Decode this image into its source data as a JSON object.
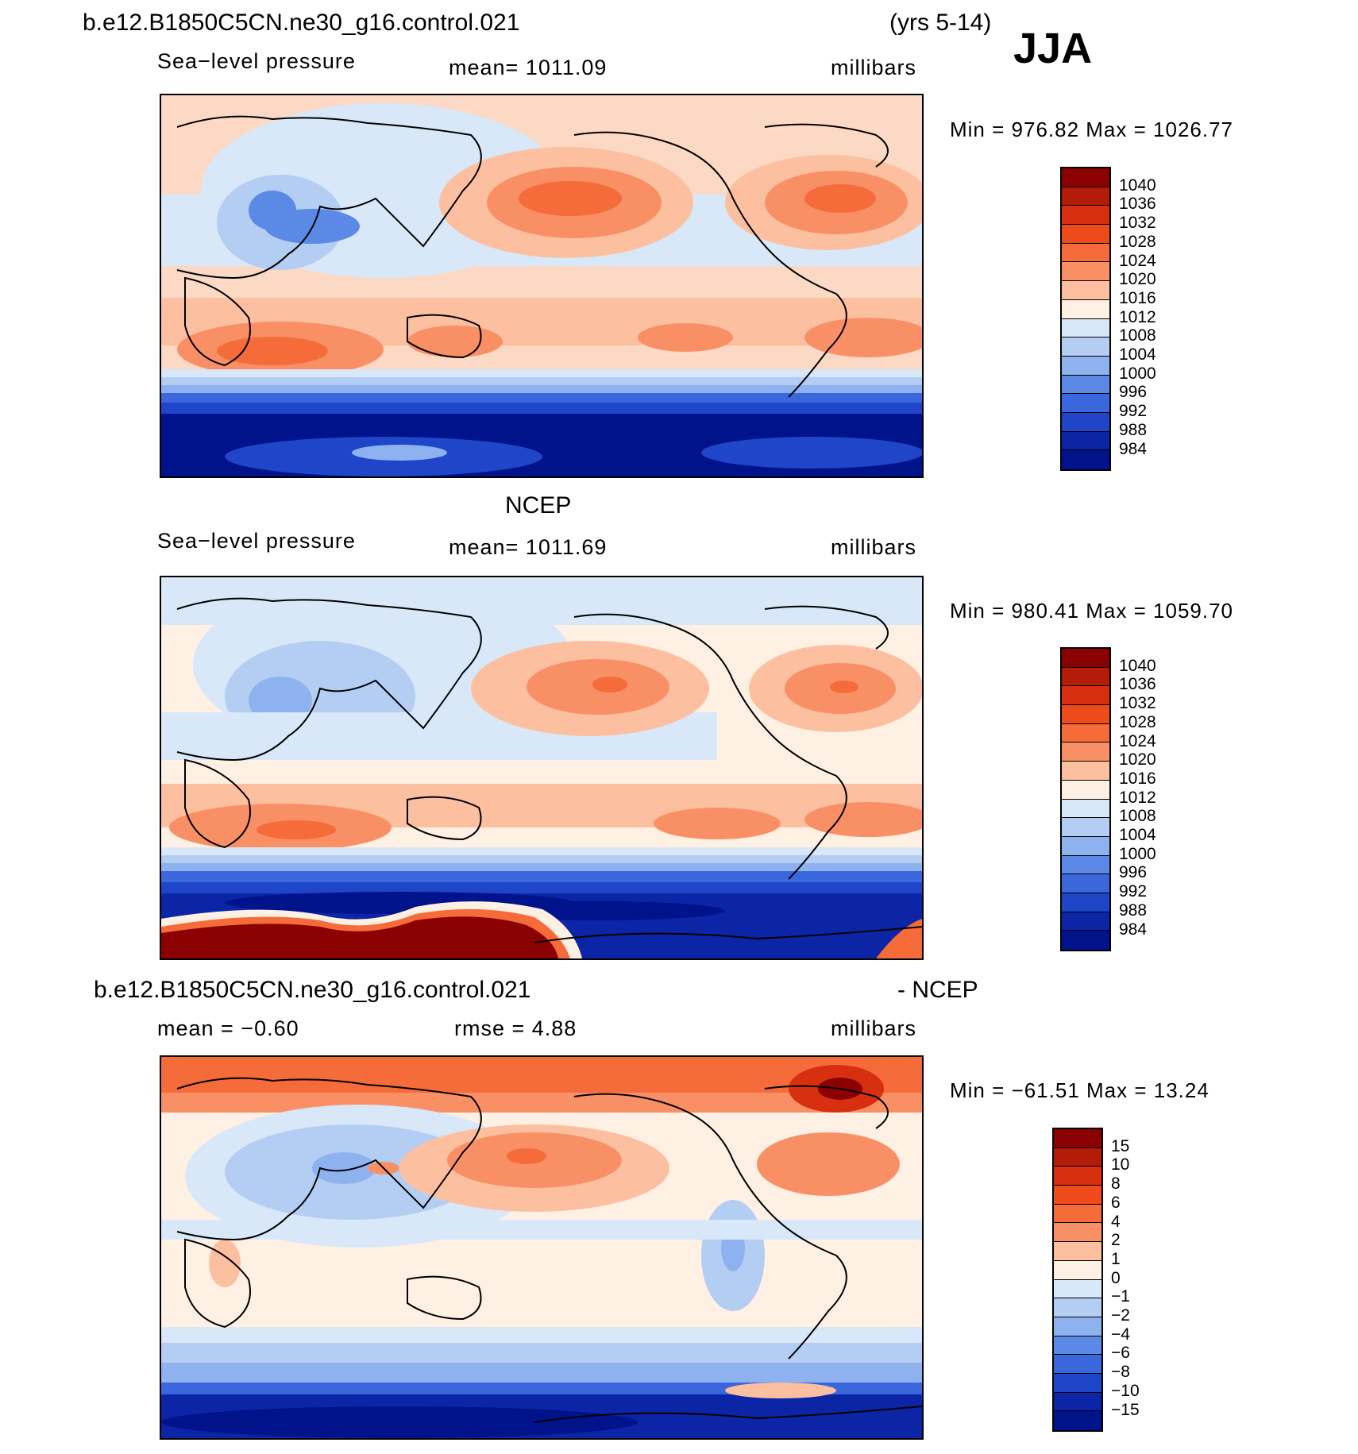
{
  "header": {
    "case_name": "b.e12.B1850C5CN.ne30_g16.control.021",
    "years": "(yrs 5-14)",
    "season": "JJA"
  },
  "panels": [
    {
      "id": "model",
      "title": "",
      "variable": "Sea−level pressure",
      "center": "mean=  1011.09",
      "units": "millibars",
      "min_max": "Min  =  976.82  Max  =  1026.77",
      "legend": {
        "labels": [
          "1040",
          "1036",
          "1032",
          "1028",
          "1024",
          "1020",
          "1016",
          "1012",
          "1008",
          "1004",
          "1000",
          "996",
          "992",
          "988",
          "984"
        ],
        "colors": [
          "#8b0000",
          "#b41c0a",
          "#d73010",
          "#ef4a1c",
          "#f66b3a",
          "#f99065",
          "#fcc0a0",
          "#fff0e4",
          "#d8e8f8",
          "#b4cdf3",
          "#8eb2ef",
          "#5b8ae6",
          "#3a68dc",
          "#1f45c9",
          "#0c25a6",
          "#00138a"
        ]
      }
    },
    {
      "id": "obs",
      "title": "NCEP",
      "variable": "Sea−level pressure",
      "center": "mean=  1011.69",
      "units": "millibars",
      "min_max": "Min  =  980.41  Max  =  1059.70",
      "legend": {
        "labels": [
          "1040",
          "1036",
          "1032",
          "1028",
          "1024",
          "1020",
          "1016",
          "1012",
          "1008",
          "1004",
          "1000",
          "996",
          "992",
          "988",
          "984"
        ],
        "colors": [
          "#8b0000",
          "#b41c0a",
          "#d73010",
          "#ef4a1c",
          "#f66b3a",
          "#f99065",
          "#fcc0a0",
          "#fff0e4",
          "#d8e8f8",
          "#b4cdf3",
          "#8eb2ef",
          "#5b8ae6",
          "#3a68dc",
          "#1f45c9",
          "#0c25a6",
          "#00138a"
        ]
      }
    },
    {
      "id": "diff",
      "title": "b.e12.B1850C5CN.ne30_g16.control.021",
      "title_right": "- NCEP",
      "variable": "mean  =    −0.60",
      "center": "rmse  =     4.88",
      "units": "millibars",
      "min_max": "Min  =  −61.51  Max  =    13.24",
      "legend": {
        "labels": [
          "15",
          "10",
          "8",
          "6",
          "4",
          "2",
          "1",
          "0",
          "−1",
          "−2",
          "−4",
          "−6",
          "−8",
          "−10",
          "−15"
        ],
        "colors": [
          "#8b0000",
          "#b41c0a",
          "#d73010",
          "#ef4a1c",
          "#f66b3a",
          "#f99065",
          "#fcc0a0",
          "#fff0e4",
          "#d8e8f8",
          "#b4cdf3",
          "#8eb2ef",
          "#5b8ae6",
          "#3a68dc",
          "#1f45c9",
          "#0c25a6",
          "#00138a"
        ]
      }
    }
  ]
}
